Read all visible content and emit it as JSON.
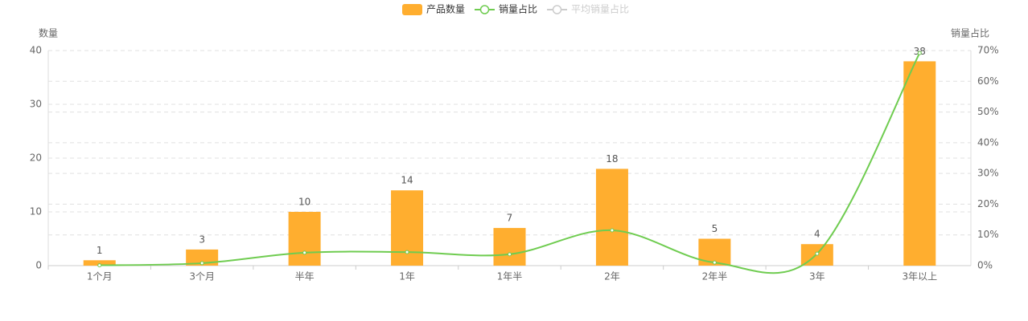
{
  "chart_data": {
    "type": "bar-line",
    "y_axis_label": "数量",
    "y2_axis_label": "销量占比",
    "categories": [
      "1个月",
      "3个月",
      "半年",
      "1年",
      "1年半",
      "2年",
      "2年半",
      "3年",
      "3年以上"
    ],
    "series": [
      {
        "name": "产品数量",
        "color": "#ffae2f",
        "type": "bar",
        "values": [
          1,
          3,
          10,
          14,
          7,
          18,
          5,
          4,
          38
        ]
      },
      {
        "name": "销量占比",
        "color": "#6fcc50",
        "type": "line",
        "axis": "y2",
        "smooth": true,
        "values": [
          0.1,
          0.8,
          4.2,
          4.4,
          3.7,
          11.5,
          1.0,
          3.9,
          69.2
        ]
      },
      {
        "name": "平均销量占比",
        "color": "#cccccc",
        "type": "line",
        "axis": "y2",
        "hidden": true
      }
    ],
    "ylim": [
      0,
      40
    ],
    "yticks": [
      0,
      10,
      20,
      30,
      40
    ],
    "y2lim": [
      0,
      70
    ],
    "y2ticks": [
      {
        "value": 0,
        "label": "0%"
      },
      {
        "value": 10,
        "label": "10%"
      },
      {
        "value": 20,
        "label": "20%"
      },
      {
        "value": 30,
        "label": "30%"
      },
      {
        "value": 40,
        "label": "40%"
      },
      {
        "value": 50,
        "label": "50%"
      },
      {
        "value": 60,
        "label": "60%"
      },
      {
        "value": 70,
        "label": "70%"
      }
    ],
    "grid": true,
    "legend": "top"
  }
}
